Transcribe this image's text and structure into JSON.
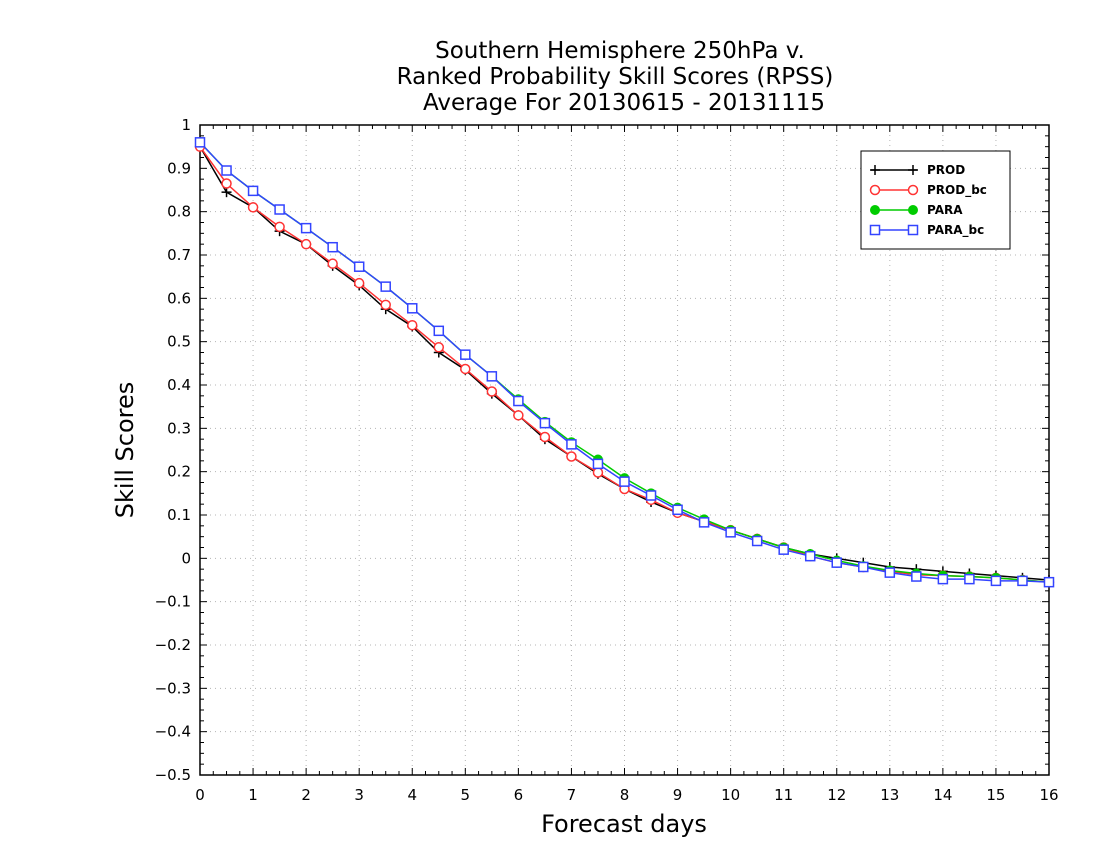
{
  "chart_data": {
    "type": "line",
    "title": [
      "Southern Hemisphere 250hPa v.",
      "Ranked Probability Skill Scores (RPSS)",
      "Average For 20130615 - 20131115"
    ],
    "xlabel": "Forecast days",
    "ylabel": "Skill Scores",
    "xlim": [
      0,
      16
    ],
    "ylim": [
      -0.5,
      1
    ],
    "xticks": [
      0,
      1,
      2,
      3,
      4,
      5,
      6,
      7,
      8,
      9,
      10,
      11,
      12,
      13,
      14,
      15,
      16
    ],
    "yticks": [
      -0.5,
      -0.4,
      -0.3,
      -0.2,
      -0.1,
      0,
      0.1,
      0.2,
      0.3,
      0.4,
      0.5,
      0.6,
      0.7,
      0.8,
      0.9,
      1
    ],
    "ytick_labels": [
      "−0.5",
      "−0.4",
      "−0.3",
      "−0.2",
      "−0.1",
      "0",
      "0.1",
      "0.2",
      "0.3",
      "0.4",
      "0.5",
      "0.6",
      "0.7",
      "0.8",
      "0.9",
      "1"
    ],
    "grid": true,
    "legend_position": "top-right",
    "x": [
      0,
      0.5,
      1,
      1.5,
      2,
      2.5,
      3,
      3.5,
      4,
      4.5,
      5,
      5.5,
      6,
      6.5,
      7,
      7.5,
      8,
      8.5,
      9,
      9.5,
      10,
      10.5,
      11,
      11.5,
      12,
      12.5,
      13,
      13.5,
      14,
      14.5,
      15,
      15.5,
      16
    ],
    "series": [
      {
        "name": "PROD",
        "color": "#000000",
        "marker": "plus",
        "values": [
          0.95,
          0.845,
          0.81,
          0.755,
          0.725,
          0.675,
          0.63,
          0.575,
          0.535,
          0.475,
          0.435,
          0.38,
          0.33,
          0.275,
          0.235,
          0.195,
          0.16,
          0.13,
          0.105,
          0.085,
          0.065,
          0.045,
          0.025,
          0.01,
          0.0,
          -0.01,
          -0.02,
          -0.025,
          -0.03,
          -0.035,
          -0.04,
          -0.045,
          -0.05
        ]
      },
      {
        "name": "PROD_bc",
        "color": "#ff3333",
        "marker": "circle-open",
        "values": [
          0.95,
          0.865,
          0.81,
          0.765,
          0.725,
          0.68,
          0.635,
          0.585,
          0.538,
          0.487,
          0.437,
          0.385,
          0.33,
          0.28,
          0.235,
          0.198,
          0.16,
          0.135,
          0.105,
          0.085,
          0.065,
          0.045,
          0.025,
          0.005,
          -0.01,
          -0.02,
          -0.03,
          -0.038,
          -0.04,
          -0.042,
          -0.045,
          -0.05,
          -0.055
        ]
      },
      {
        "name": "PARA",
        "color": "#00cc00",
        "marker": "circle-filled",
        "values": [
          0.96,
          0.895,
          0.848,
          0.805,
          0.762,
          0.718,
          0.673,
          0.627,
          0.577,
          0.525,
          0.47,
          0.42,
          0.367,
          0.315,
          0.268,
          0.228,
          0.185,
          0.15,
          0.117,
          0.09,
          0.065,
          0.045,
          0.025,
          0.01,
          -0.005,
          -0.018,
          -0.028,
          -0.035,
          -0.04,
          -0.042,
          -0.045,
          -0.05,
          -0.055
        ]
      },
      {
        "name": "PARA_bc",
        "color": "#3344ff",
        "marker": "square-open",
        "values": [
          0.96,
          0.895,
          0.848,
          0.805,
          0.762,
          0.718,
          0.673,
          0.627,
          0.577,
          0.525,
          0.47,
          0.42,
          0.363,
          0.312,
          0.263,
          0.218,
          0.177,
          0.145,
          0.112,
          0.083,
          0.06,
          0.04,
          0.02,
          0.005,
          -0.01,
          -0.02,
          -0.033,
          -0.042,
          -0.048,
          -0.048,
          -0.052,
          -0.052,
          -0.055
        ]
      }
    ]
  }
}
